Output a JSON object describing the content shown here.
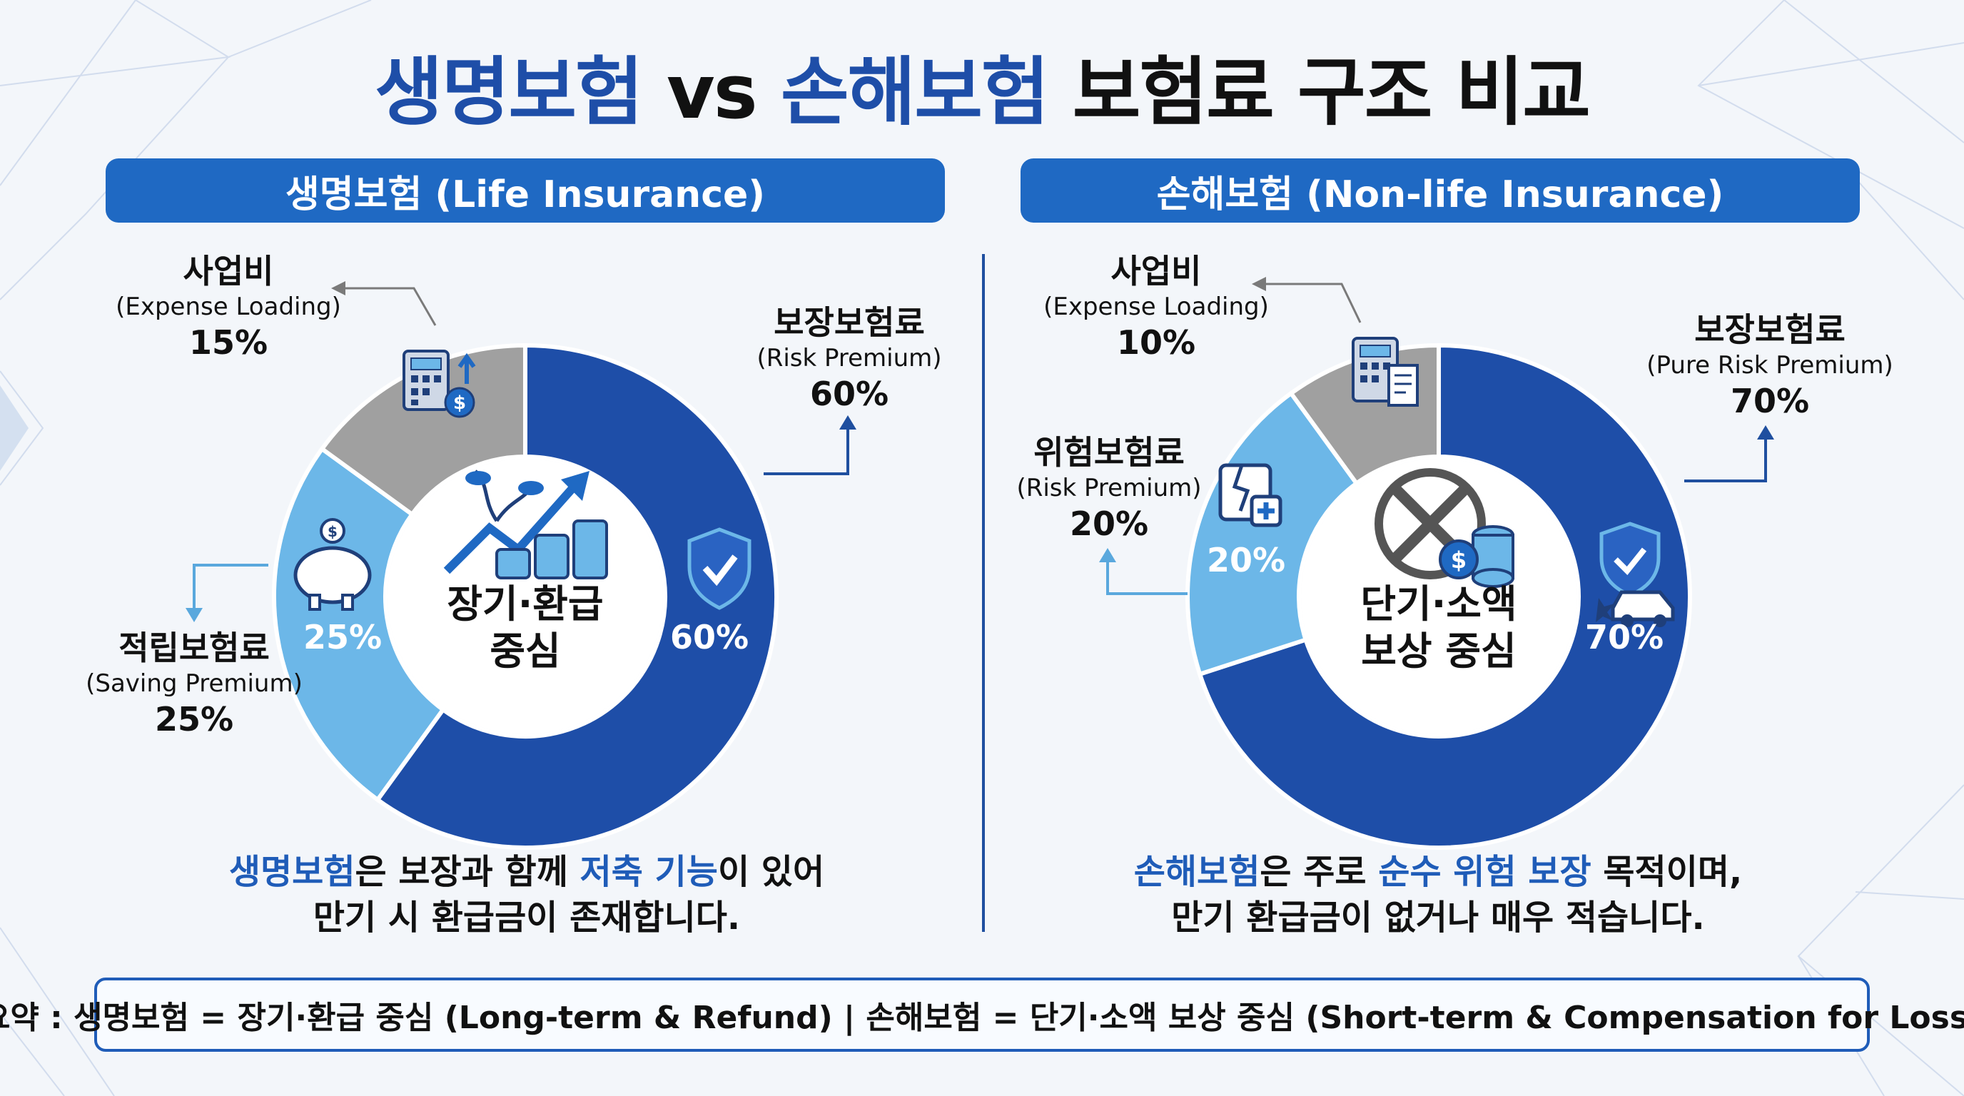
{
  "title": {
    "part1": "생명보험",
    "vs": " vs ",
    "part2": "손해보험",
    "rest": " 보험료 구조 비교"
  },
  "colors": {
    "dark_blue": "#1e4ea8",
    "light_blue": "#6cb7e8",
    "gray": "#a0a0a0",
    "pill": "#1f69c3",
    "accent_text": "#1f5cb8"
  },
  "left": {
    "header": "생명보험 (Life Insurance)",
    "center_line1": "장기·환급",
    "center_line2": "중심",
    "labels": {
      "expense": {
        "title": "사업비",
        "sub": "(Expense Loading)",
        "pct": "15%"
      },
      "risk": {
        "title": "보장보험료",
        "sub": "(Risk Premium)",
        "pct": "60%"
      },
      "saving": {
        "title": "적립보험료",
        "sub": "(Saving Premium)",
        "pct": "25%"
      }
    },
    "inner_pct": {
      "risk": "60%",
      "saving": "25%"
    },
    "icons": [
      "calculator-coin-icon",
      "growth-coins-icon",
      "piggy-bank-icon",
      "shield-check-icon"
    ],
    "desc": {
      "l1_a": "생명보험",
      "l1_b": "은 보장과 함께 ",
      "l1_c": "저축 기능",
      "l1_d": "이 있어",
      "l2": "만기 시 환급금이 존재합니다."
    }
  },
  "right": {
    "header": "손해보험 (Non-life Insurance)",
    "center_line1": "단기·소액",
    "center_line2": "보상 중심",
    "labels": {
      "expense": {
        "title": "사업비",
        "sub": "(Expense Loading)",
        "pct": "10%"
      },
      "pure_risk": {
        "title": "보장보험료",
        "sub": "(Pure Risk Premium)",
        "pct": "70%"
      },
      "risk": {
        "title": "위험보험료",
        "sub": "(Risk Premium)",
        "pct": "20%"
      }
    },
    "inner_pct": {
      "pure_risk": "70%",
      "risk": "20%"
    },
    "icons": [
      "calculator-receipt-icon",
      "no-refund-coins-icon",
      "damaged-building-icon",
      "shield-car-icon"
    ],
    "desc": {
      "l1_a": "손해보험",
      "l1_b": "은 주로 ",
      "l1_c": "순수 위험 보장",
      "l1_d": " 목적이며,",
      "l2": "만기 환급금이 없거나 매우 적습니다."
    }
  },
  "summary": "요약 : 생명보험 = 장기·환급 중심 (Long-term & Refund) | 손해보험 = 단기·소액 보상 중심 (Short-term & Compensation for Loss)",
  "chart_data": [
    {
      "type": "pie",
      "donut": true,
      "title": "생명보험 (Life Insurance)",
      "categories": [
        "보장보험료 (Risk Premium)",
        "적립보험료 (Saving Premium)",
        "사업비 (Expense Loading)"
      ],
      "values": [
        60,
        25,
        15
      ],
      "colors": [
        "#1e4ea8",
        "#6cb7e8",
        "#a0a0a0"
      ]
    },
    {
      "type": "pie",
      "donut": true,
      "title": "손해보험 (Non-life Insurance)",
      "categories": [
        "보장보험료 (Pure Risk Premium)",
        "위험보험료 (Risk Premium)",
        "사업비 (Expense Loading)"
      ],
      "values": [
        70,
        20,
        10
      ],
      "colors": [
        "#1e4ea8",
        "#6cb7e8",
        "#a0a0a0"
      ]
    }
  ]
}
